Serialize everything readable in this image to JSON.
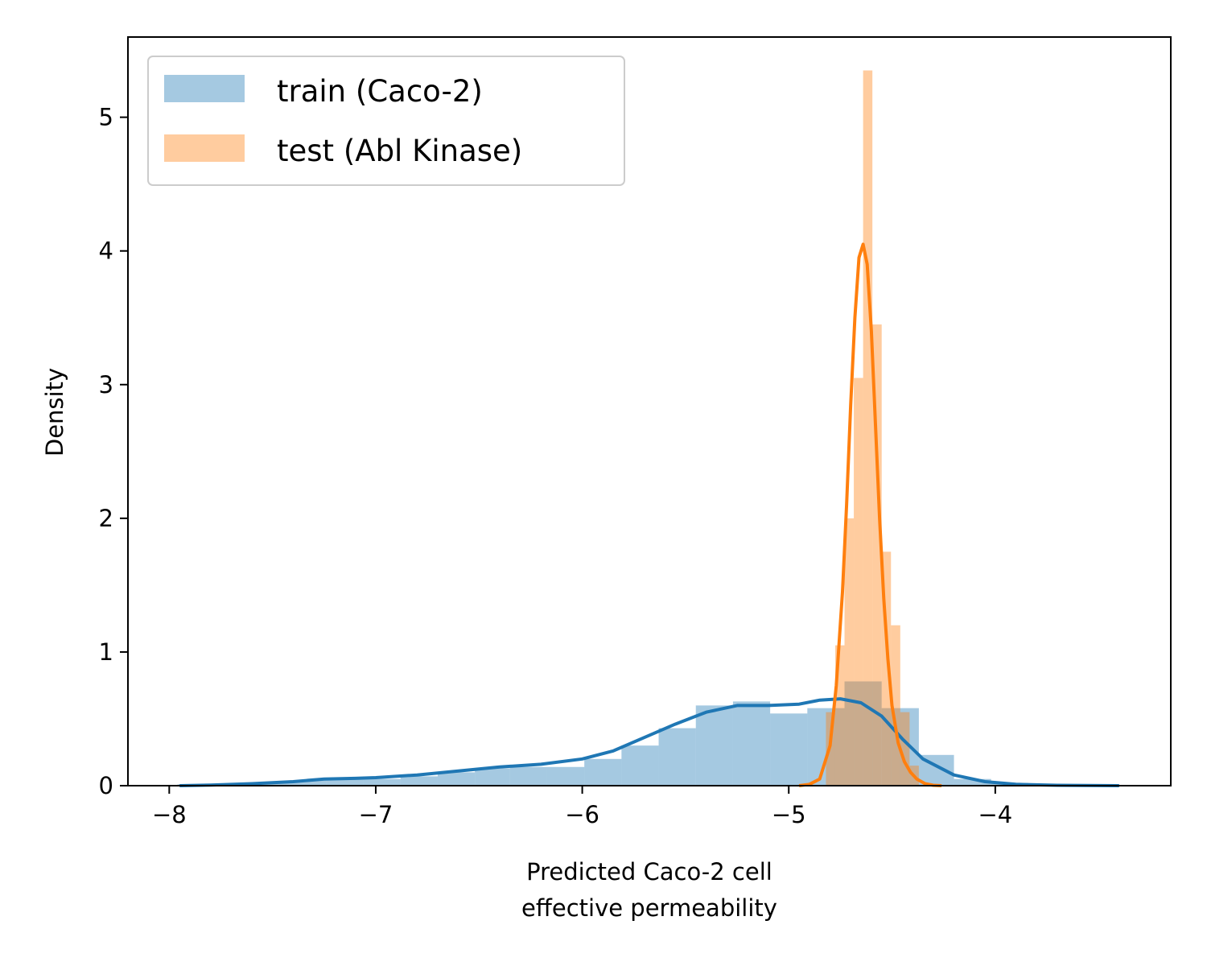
{
  "chart_data": {
    "type": "histogram+kde",
    "xlabel": [
      "Predicted Caco-2 cell",
      "effective permeability"
    ],
    "ylabel": "Density",
    "xlim": [
      -8.2,
      -3.15
    ],
    "ylim": [
      0,
      5.6
    ],
    "xticks": [
      -8,
      -7,
      -6,
      -5,
      -4
    ],
    "xtick_labels": [
      "−8",
      "−7",
      "−6",
      "−5",
      "−4"
    ],
    "yticks": [
      0,
      1,
      2,
      3,
      4,
      5
    ],
    "ytick_labels": [
      "0",
      "1",
      "2",
      "3",
      "4",
      "5"
    ],
    "grid": false,
    "legend_position": "top-left",
    "series": [
      {
        "name": "train (Caco-2)",
        "color": "#1f77b4",
        "hist_alpha": 0.4,
        "bin_edges": [
          -7.96,
          -7.78,
          -7.6,
          -7.42,
          -7.24,
          -7.06,
          -6.88,
          -6.7,
          -6.52,
          -6.35,
          -6.17,
          -5.99,
          -5.81,
          -5.63,
          -5.45,
          -5.27,
          -5.09,
          -4.91,
          -4.73,
          -4.55,
          -4.37,
          -4.2,
          -4.02,
          -3.84,
          -3.66,
          -3.48,
          -3.4
        ],
        "hist_values": [
          0.01,
          0.01,
          0.02,
          0.04,
          0.05,
          0.05,
          0.07,
          0.1,
          0.13,
          0.14,
          0.14,
          0.2,
          0.3,
          0.43,
          0.6,
          0.63,
          0.54,
          0.58,
          0.78,
          0.58,
          0.23,
          0.05,
          0.02,
          0.01,
          0.0,
          0.0
        ],
        "kde_x": [
          -7.95,
          -7.8,
          -7.6,
          -7.4,
          -7.25,
          -7.1,
          -7.0,
          -6.8,
          -6.6,
          -6.4,
          -6.2,
          -6.0,
          -5.85,
          -5.7,
          -5.55,
          -5.4,
          -5.25,
          -5.1,
          -4.95,
          -4.85,
          -4.75,
          -4.65,
          -4.55,
          -4.45,
          -4.35,
          -4.2,
          -4.05,
          -3.9,
          -3.7,
          -3.55,
          -3.4
        ],
        "kde_y": [
          0.0,
          0.005,
          0.015,
          0.03,
          0.05,
          0.055,
          0.06,
          0.08,
          0.11,
          0.14,
          0.16,
          0.2,
          0.26,
          0.36,
          0.46,
          0.55,
          0.6,
          0.6,
          0.61,
          0.64,
          0.65,
          0.62,
          0.52,
          0.35,
          0.2,
          0.08,
          0.03,
          0.01,
          0.003,
          0.001,
          0.0
        ]
      },
      {
        "name": "test (Abl Kinase)",
        "color": "#ff7f0e",
        "hist_alpha": 0.4,
        "bin_edges": [
          -4.91,
          -4.865,
          -4.82,
          -4.775,
          -4.73,
          -4.685,
          -4.64,
          -4.595,
          -4.55,
          -4.505,
          -4.46,
          -4.415,
          -4.37,
          -4.325,
          -4.28
        ],
        "hist_values": [
          0.0,
          0.0,
          0.55,
          1.05,
          2.0,
          3.05,
          5.35,
          3.45,
          1.75,
          1.2,
          0.55,
          0.15,
          0.0,
          0.0
        ],
        "kde_x": [
          -4.95,
          -4.9,
          -4.85,
          -4.8,
          -4.77,
          -4.74,
          -4.72,
          -4.7,
          -4.68,
          -4.66,
          -4.64,
          -4.62,
          -4.6,
          -4.58,
          -4.56,
          -4.54,
          -4.52,
          -4.5,
          -4.47,
          -4.44,
          -4.41,
          -4.38,
          -4.34,
          -4.3,
          -4.26
        ],
        "kde_y": [
          0.0,
          0.01,
          0.05,
          0.3,
          0.75,
          1.45,
          2.1,
          2.85,
          3.5,
          3.95,
          4.05,
          3.9,
          3.4,
          2.7,
          2.0,
          1.4,
          0.95,
          0.6,
          0.32,
          0.18,
          0.1,
          0.05,
          0.015,
          0.003,
          0.0
        ]
      }
    ]
  }
}
